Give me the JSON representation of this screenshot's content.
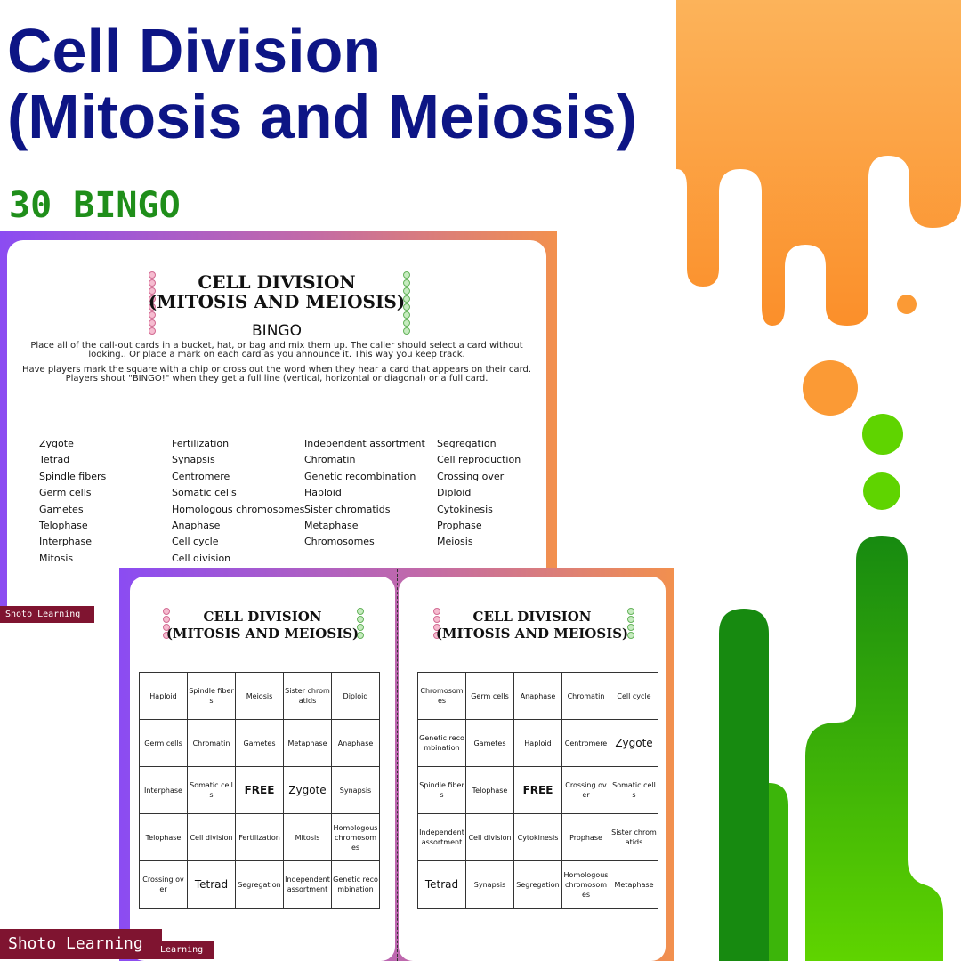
{
  "cover": {
    "title_line1": "Cell Division",
    "title_line2": "(Mitosis and Meiosis)",
    "subtitle": "30 BINGO"
  },
  "colors": {
    "title": "#0d1585",
    "subtitle": "#1f8e1a",
    "orange": "#fb9a35",
    "green_light": "#5fd400",
    "green_dark": "#1a8a10",
    "frame_start": "#8b4cf2",
    "frame_end": "#f2904e",
    "brand_bg": "#7f1430"
  },
  "icons": [
    "cell-chain-pink-icon",
    "cell-chain-green-icon"
  ],
  "instructions_page": {
    "heading_line1": "CELL DIVISION",
    "heading_line2": "(MITOSIS AND MEIOSIS)",
    "bingo_label": "BINGO",
    "paragraph1": "Place all of the call-out cards in a bucket, hat, or bag and mix them up. The caller should select a card without looking.. Or place a mark on each card as you announce it. This way you keep track.",
    "paragraph2": "Have players mark the square with a chip or cross out the word when they hear a card that appears on their card. Players shout \"BINGO!\" when they get a full line (vertical, horizontal or diagonal) or a full card.",
    "word_columns": [
      [
        "Zygote",
        "Tetrad",
        "Spindle fibers",
        "Germ cells",
        "Gametes",
        "Telophase",
        "Interphase",
        "Mitosis"
      ],
      [
        "Fertilization",
        "Synapsis",
        "Centromere",
        "Somatic cells",
        "Homologous chromosomes",
        "Anaphase",
        "Cell cycle",
        "Cell division"
      ],
      [
        "Independent assortment",
        "Chromatin",
        "Genetic recombination",
        "Haploid",
        "Sister chromatids",
        "Metaphase",
        "Chromosomes"
      ],
      [
        "Segregation",
        "Cell reproduction",
        "Crossing over",
        "Diploid",
        "Cytokinesis",
        "Prophase",
        "Meiosis"
      ]
    ]
  },
  "brand_small": "Shoto Learning",
  "brand_large": "Shoto Learning",
  "brand_tail": "Learning",
  "cards": [
    {
      "heading_line1": "CELL DIVISION",
      "heading_line2": "(MITOSIS AND MEIOSIS)",
      "grid": [
        [
          "Haploid",
          "Spindle fibers",
          "Meiosis",
          "Sister chromatids",
          "Diploid"
        ],
        [
          "Germ cells",
          "Chromatin",
          "Gametes",
          "Metaphase",
          "Anaphase"
        ],
        [
          "Interphase",
          "Somatic cells",
          "FREE",
          "Zygote",
          "Synapsis"
        ],
        [
          "Telophase",
          "Cell division",
          "Fertilization",
          "Mitosis",
          "Homologous chromosomes"
        ],
        [
          "Crossing over",
          "Tetrad",
          "Segregation",
          "Independent assortment",
          "Genetic recombination"
        ]
      ]
    },
    {
      "heading_line1": "CELL DIVISION",
      "heading_line2": "(MITOSIS AND MEIOSIS)",
      "grid": [
        [
          "Chromosomes",
          "Germ cells",
          "Anaphase",
          "Chromatin",
          "Cell cycle"
        ],
        [
          "Genetic recombination",
          "Gametes",
          "Haploid",
          "Centromere",
          "Zygote"
        ],
        [
          "Spindle fibers",
          "Telophase",
          "FREE",
          "Crossing over",
          "Somatic cells"
        ],
        [
          "Independent assortment",
          "Cell division",
          "Cytokinesis",
          "Prophase",
          "Sister chromatids"
        ],
        [
          "Tetrad",
          "Synapsis",
          "Segregation",
          "Homologous chromosomes",
          "Metaphase"
        ]
      ]
    }
  ]
}
